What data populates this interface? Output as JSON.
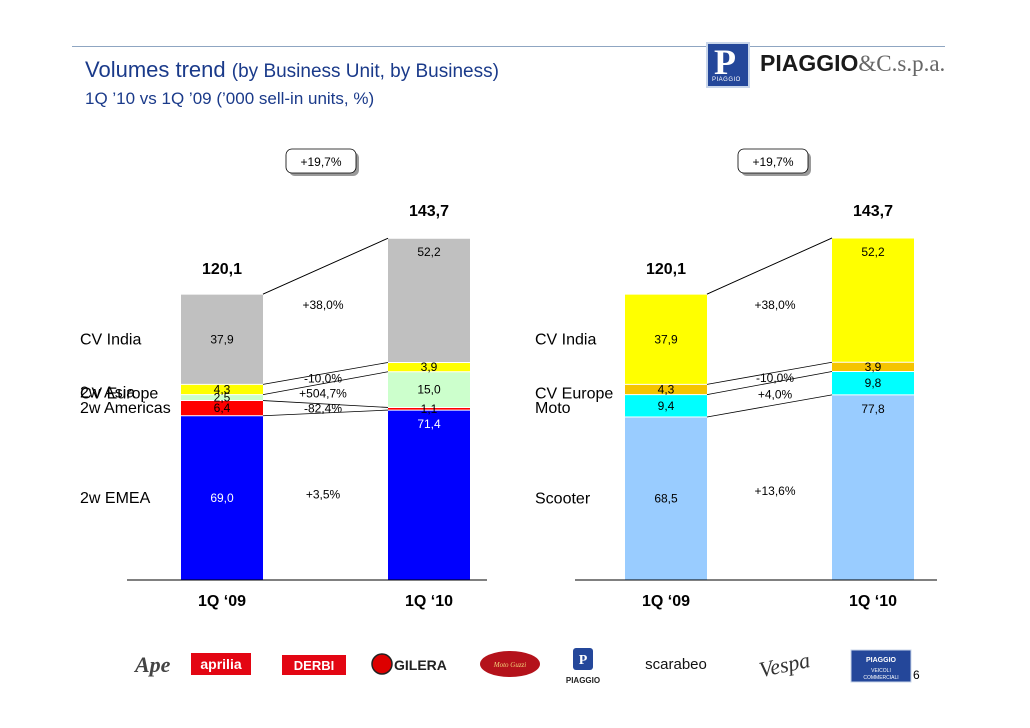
{
  "header": {
    "title_main": "Volumes trend",
    "title_sub": "(by Business Unit, by Business)",
    "subtitle": "1Q ’10 vs 1Q ’09 (’000 sell-in units, %)",
    "logo_letter": "P",
    "logo_mini": "PIAGGIO",
    "logo_name": "PIAGGIO",
    "logo_suffix": "&C.s.p.a."
  },
  "colors": {
    "title": "#1a3a8a",
    "gray": "#c0c0c0",
    "blue": "#0000ff",
    "red": "#ff0000",
    "lightgreen": "#ccffcc",
    "yellow": "#ffff00",
    "orange": "#f5c400",
    "cyan": "#00ffff",
    "lightblue": "#99ccff"
  },
  "chart_data": [
    {
      "type": "bar",
      "stacked": true,
      "categories": [
        "1Q ‘09",
        "1Q ‘10"
      ],
      "totals": [
        "120,1",
        "143,7"
      ],
      "growth_badge": "+19,7%",
      "series": [
        {
          "name": "2w EMEA",
          "values": [
            69.0,
            71.4
          ],
          "labels": [
            "69,0",
            "71,4"
          ],
          "color": "#0000ff",
          "label_color": "#ffffff",
          "change": "+3,5%"
        },
        {
          "name": "2w Americas",
          "values": [
            6.4,
            1.1
          ],
          "labels": [
            "6,4",
            "1,1"
          ],
          "color": "#ff0000",
          "label_color": "#000000",
          "change": "-82,4%"
        },
        {
          "name": "2w Asia",
          "values": [
            2.5,
            15.0
          ],
          "labels": [
            "2,5",
            "15,0"
          ],
          "color": "#ccffcc",
          "label_color": "#000000",
          "change": "+504,7%"
        },
        {
          "name": "CV Europe",
          "values": [
            4.3,
            3.9
          ],
          "labels": [
            "4,3",
            "3,9"
          ],
          "color": "#ffff00",
          "label_color": "#000000",
          "change": "-10,0%"
        },
        {
          "name": "CV India",
          "values": [
            37.9,
            52.2
          ],
          "labels": [
            "37,9",
            "52,2"
          ],
          "color": "#c0c0c0",
          "label_color": "#000000",
          "change": "+38,0%"
        }
      ]
    },
    {
      "type": "bar",
      "stacked": true,
      "categories": [
        "1Q ‘09",
        "1Q ‘10"
      ],
      "totals": [
        "120,1",
        "143,7"
      ],
      "growth_badge": "+19,7%",
      "series": [
        {
          "name": "Scooter",
          "values": [
            68.5,
            77.8
          ],
          "labels": [
            "68,5",
            "77,8"
          ],
          "color": "#99ccff",
          "label_color": "#000000",
          "change": "+13,6%"
        },
        {
          "name": "Moto",
          "values": [
            9.4,
            9.8
          ],
          "labels": [
            "9,4",
            "9,8"
          ],
          "color": "#00ffff",
          "label_color": "#000000",
          "change": "+4,0%"
        },
        {
          "name": "CV Europe",
          "values": [
            4.3,
            3.9
          ],
          "labels": [
            "4,3",
            "3,9"
          ],
          "color": "#f5c400",
          "label_color": "#000000",
          "change": "-10,0%"
        },
        {
          "name": "CV India",
          "values": [
            37.9,
            52.2
          ],
          "labels": [
            "37,9",
            "52,2"
          ],
          "color": "#ffff00",
          "label_color": "#000000",
          "change": "+38,0%"
        }
      ]
    }
  ],
  "brands": [
    "Ape",
    "aprilia",
    "DERBI",
    "GILERA",
    "Moto Guzzi",
    "PIAGGIO",
    "scarabeo",
    "Vespa",
    "PIAGGIO VEICOLI COMMERCIALI"
  ],
  "page_number": "6"
}
